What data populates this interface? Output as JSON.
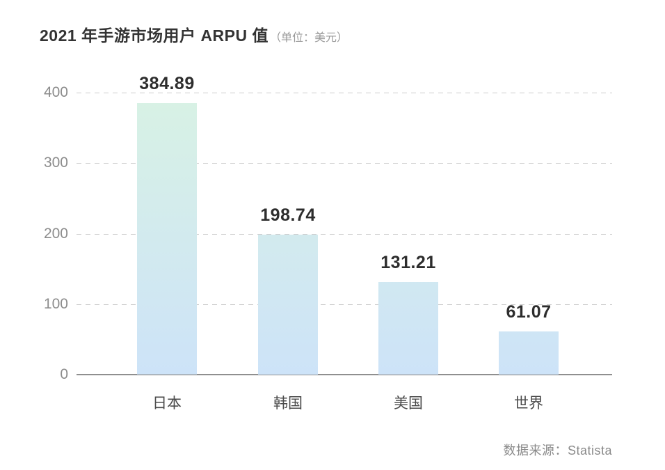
{
  "title": {
    "main": "2021 年手游市场用户 ARPU 值",
    "unit": "（单位：美元）"
  },
  "source": "数据来源：Statista",
  "chart_data": {
    "type": "bar",
    "title": "2021 年手游市场用户 ARPU 值（单位：美元）",
    "categories": [
      "日本",
      "韩国",
      "美国",
      "世界"
    ],
    "values": [
      384.89,
      198.74,
      131.21,
      61.07
    ],
    "value_labels": [
      "384.89",
      "198.74",
      "131.21",
      "61.07"
    ],
    "xlabel": "",
    "ylabel": "",
    "ylim": [
      0,
      400
    ],
    "yticks": [
      0,
      100,
      200,
      300,
      400
    ],
    "grid": "horizontal-dashed",
    "legend": "none",
    "colors": {
      "bar_gradient_top": "#d8f2e4",
      "bar_gradient_bottom": "#cde3f8",
      "gridline": "#cccccc",
      "baseline": "#8f8f8f",
      "value_label": "#2d2d2d",
      "tick_label": "#8c8c8c"
    }
  }
}
